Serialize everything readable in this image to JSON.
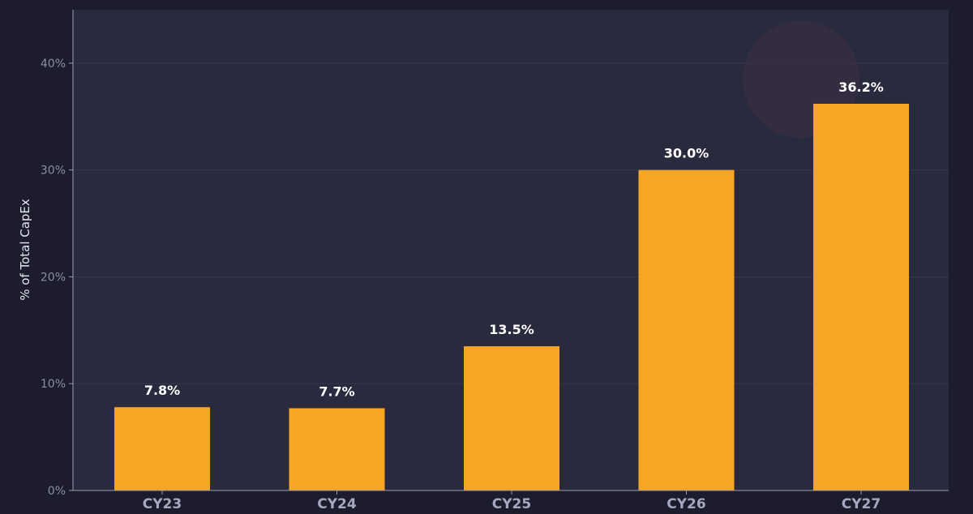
{
  "chart_data": {
    "type": "bar",
    "categories": [
      "CY23",
      "CY24",
      "CY25",
      "CY26",
      "CY27"
    ],
    "values": [
      7.8,
      7.7,
      13.5,
      30.0,
      36.2
    ],
    "value_labels": [
      "7.8%",
      "7.7%",
      "13.5%",
      "30.0%",
      "36.2%"
    ],
    "title": "",
    "xlabel": "",
    "ylabel": "% of Total CapEx",
    "ylim": [
      0,
      45
    ],
    "yticks": [
      0,
      10,
      20,
      30,
      40
    ],
    "ytick_labels": [
      "0%",
      "10%",
      "20%",
      "30%",
      "40%"
    ],
    "grid": true,
    "legend": "none"
  },
  "colors": {
    "background": "#1c1c2d",
    "plot_background": "#2a2a3e",
    "bar": "#f5a623",
    "grid": "#34364a",
    "axis": "#9a9cb0",
    "watermark": "#3a2f3f"
  }
}
